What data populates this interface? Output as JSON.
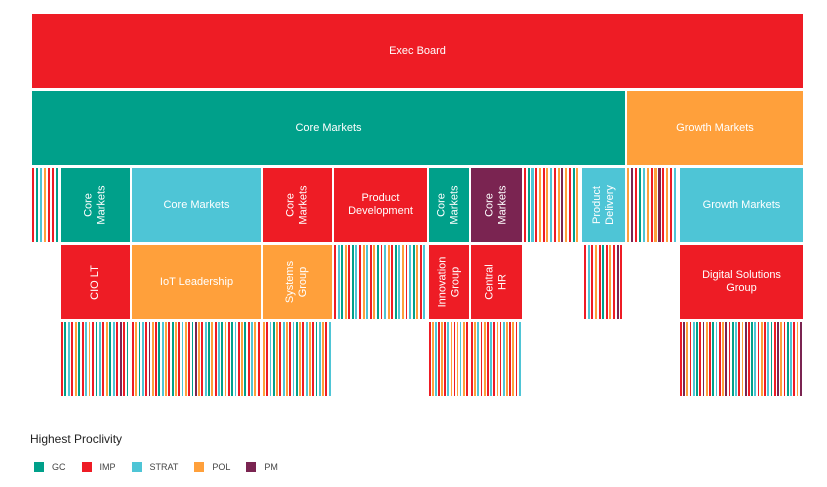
{
  "colors": {
    "GC": "#00A08A",
    "IMP": "#EE1C25",
    "STRAT": "#4EC5D6",
    "POL": "#FFA03B",
    "PM": "#7A2451"
  },
  "blocks": [
    {
      "label": "Exec Board",
      "cat": "IMP"
    },
    {
      "label": "Core Markets",
      "cat": "GC"
    },
    {
      "label": "Growth Markets",
      "cat": "POL"
    },
    {
      "label": "Core\nMarkets",
      "cat": "GC"
    },
    {
      "label": "Core Markets",
      "cat": "STRAT"
    },
    {
      "label": "Core\nMarkets",
      "cat": "IMP"
    },
    {
      "label": "Product\nDevelopment",
      "cat": "IMP"
    },
    {
      "label": "Core\nMarkets",
      "cat": "GC"
    },
    {
      "label": "Core\nMarkets",
      "cat": "PM"
    },
    {
      "label": "Product\nDelivery",
      "cat": "STRAT"
    },
    {
      "label": "Growth Markets",
      "cat": "STRAT"
    },
    {
      "label": "CIO LT",
      "cat": "IMP"
    },
    {
      "label": "IoT Leadership",
      "cat": "POL"
    },
    {
      "label": "Systems\nGroup",
      "cat": "POL"
    },
    {
      "label": "Innovation\nGroup",
      "cat": "IMP"
    },
    {
      "label": "Central HR",
      "cat": "IMP"
    },
    {
      "label": "Digital Solutions\nGroup",
      "cat": "IMP"
    }
  ],
  "legend": {
    "title": "Highest Proclivity",
    "items": [
      {
        "label": "GC",
        "cat": "GC"
      },
      {
        "label": "IMP",
        "cat": "IMP"
      },
      {
        "label": "STRAT",
        "cat": "STRAT"
      },
      {
        "label": "POL",
        "cat": "POL"
      },
      {
        "label": "PM",
        "cat": "PM"
      }
    ]
  }
}
